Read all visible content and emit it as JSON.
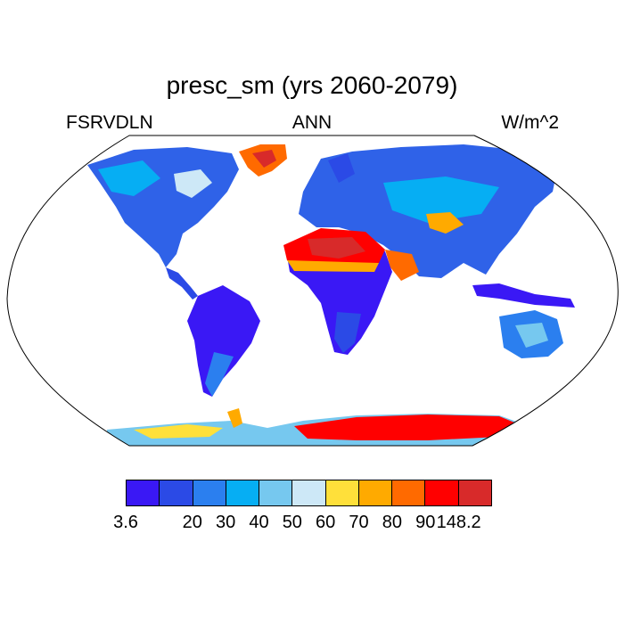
{
  "title": "presc_sm (yrs 2060-2079)",
  "subtitle_left": "FSRVDLN",
  "subtitle_center": "ANN",
  "subtitle_right": "W/m^2",
  "colorbar": {
    "colors": [
      "#3a18f5",
      "#2b4ae6",
      "#2b7fef",
      "#06aef3",
      "#76c8ef",
      "#cde8f7",
      "#ffe03a",
      "#ffaa00",
      "#ff6a00",
      "#ff0000",
      "#d82a2a"
    ],
    "labels": [
      "3.6",
      "20",
      "30",
      "40",
      "50",
      "60",
      "70",
      "80",
      "90",
      "148.2"
    ]
  },
  "map": {
    "projection": "Robinson",
    "land_color": "#2f62e8",
    "ocean_color": "#ffffff"
  }
}
